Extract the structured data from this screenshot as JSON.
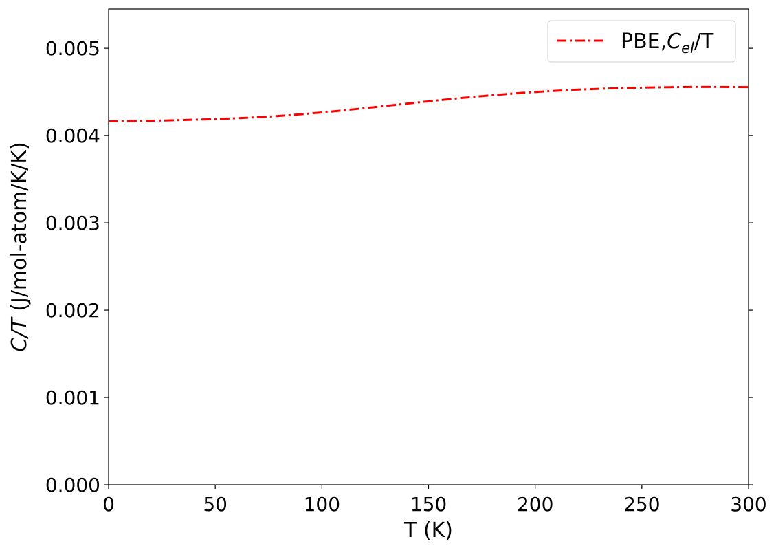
{
  "chart_data": {
    "type": "line",
    "title": "",
    "xlabel": "T (K)",
    "ylabel": {
      "italic": "C/T",
      "rest": " (J/mol-atom/K/K)"
    },
    "xlim": [
      0,
      300
    ],
    "ylim": [
      0.0,
      0.00545
    ],
    "xticks": [
      0,
      50,
      100,
      150,
      200,
      250,
      300
    ],
    "xtick_labels": [
      "0",
      "50",
      "100",
      "150",
      "200",
      "250",
      "300"
    ],
    "yticks": [
      0.0,
      0.001,
      0.002,
      0.003,
      0.004,
      0.005
    ],
    "ytick_labels": [
      "0.000",
      "0.001",
      "0.002",
      "0.003",
      "0.004",
      "0.005"
    ],
    "grid": false,
    "legend_position": "top-right",
    "series": [
      {
        "name": "PBE,C_el/T",
        "legend_label": {
          "prefix": "PBE,",
          "symbol": "C",
          "subscript": "el",
          "suffix": "/T"
        },
        "color": "#ff0000",
        "line_style": "dash-dot",
        "x": [
          0,
          25,
          50,
          75,
          100,
          125,
          150,
          175,
          200,
          225,
          250,
          275,
          300
        ],
        "y": [
          0.004162,
          0.004172,
          0.004189,
          0.004217,
          0.004265,
          0.004327,
          0.004392,
          0.004452,
          0.004499,
          0.004531,
          0.004549,
          0.004557,
          0.004555
        ]
      }
    ]
  }
}
